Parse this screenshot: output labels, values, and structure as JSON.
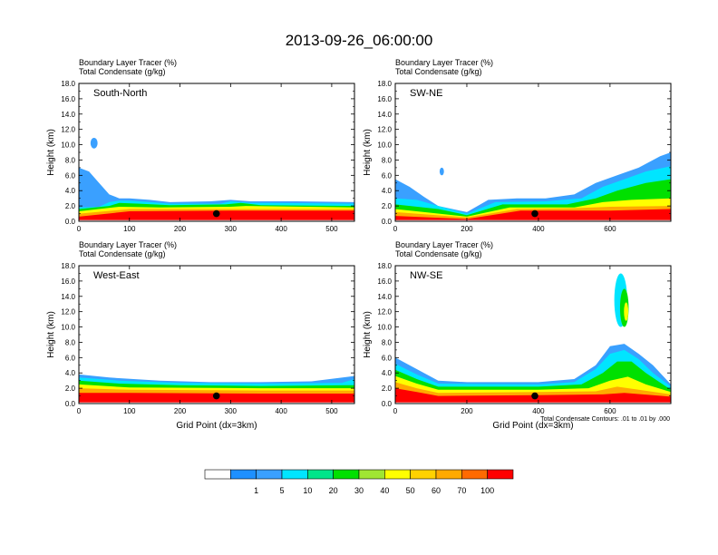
{
  "title": "2013-09-26_06:00:00",
  "colorbar": {
    "colors": [
      "#ffffff",
      "#1e90ff",
      "#3aa0ff",
      "#00e5ff",
      "#00e58a",
      "#00e000",
      "#a0e632",
      "#ffff00",
      "#ffd200",
      "#ffaa00",
      "#ff6a00",
      "#ff0000"
    ],
    "labels": [
      "1",
      "5",
      "10",
      "20",
      "30",
      "40",
      "50",
      "60",
      "70",
      "100"
    ]
  },
  "chart_data": [
    {
      "type": "heatmap",
      "name": "south-north",
      "panel_label": "South-North",
      "header_line1": "Boundary Layer Tracer   (%)",
      "header_line2": "Total Condensate   (g/kg)",
      "xlim": [
        0,
        545
      ],
      "ylim": [
        0,
        18
      ],
      "xticks": [
        0,
        100,
        200,
        300,
        400,
        500
      ],
      "yticks": [
        "0.0",
        "2.0",
        "4.0",
        "6.0",
        "8.0",
        "10.0",
        "12.0",
        "14.0",
        "16.0",
        "18.0"
      ],
      "ylabel": "Height (km)",
      "xlabel": "",
      "marker_x": 272,
      "marker_height_km": 1.0,
      "note": "",
      "layers": [
        {
          "color": "#3aa0ff",
          "top_km": [
            [
              0,
              7.0
            ],
            [
              20,
              6.5
            ],
            [
              40,
              5.0
            ],
            [
              60,
              3.5
            ],
            [
              80,
              3.0
            ],
            [
              100,
              3.0
            ],
            [
              140,
              2.8
            ],
            [
              180,
              2.5
            ],
            [
              260,
              2.6
            ],
            [
              300,
              2.8
            ],
            [
              340,
              2.6
            ],
            [
              380,
              2.6
            ],
            [
              430,
              2.6
            ],
            [
              545,
              2.5
            ]
          ]
        },
        {
          "color": "#00e5ff",
          "top_km": [
            [
              0,
              1.8
            ],
            [
              40,
              1.9
            ],
            [
              60,
              2.5
            ],
            [
              80,
              2.7
            ],
            [
              100,
              2.7
            ],
            [
              140,
              2.5
            ],
            [
              180,
              2.3
            ],
            [
              280,
              2.3
            ],
            [
              300,
              2.6
            ],
            [
              340,
              2.4
            ],
            [
              380,
              2.4
            ],
            [
              545,
              2.3
            ]
          ]
        },
        {
          "color": "#00e000",
          "top_km": [
            [
              0,
              1.6
            ],
            [
              60,
              2.0
            ],
            [
              80,
              2.4
            ],
            [
              120,
              2.3
            ],
            [
              180,
              2.1
            ],
            [
              290,
              2.2
            ],
            [
              320,
              2.4
            ],
            [
              360,
              2.1
            ],
            [
              545,
              2.0
            ]
          ]
        },
        {
          "color": "#ffff00",
          "top_km": [
            [
              0,
              1.3
            ],
            [
              80,
              1.9
            ],
            [
              160,
              1.8
            ],
            [
              300,
              1.9
            ],
            [
              330,
              2.0
            ],
            [
              545,
              1.8
            ]
          ]
        },
        {
          "color": "#ffaa00",
          "top_km": [
            [
              0,
              1.0
            ],
            [
              100,
              1.6
            ],
            [
              300,
              1.6
            ],
            [
              545,
              1.6
            ]
          ]
        },
        {
          "color": "#ff0000",
          "top_km": [
            [
              0,
              0.6
            ],
            [
              100,
              1.3
            ],
            [
              300,
              1.4
            ],
            [
              545,
              1.4
            ]
          ]
        }
      ],
      "blobs": [
        {
          "color": "#3aa0ff",
          "x": 30,
          "h_km": 10.2,
          "rx": 7,
          "ry_km": 0.7
        }
      ]
    },
    {
      "type": "heatmap",
      "name": "sw-ne",
      "panel_label": "SW-NE",
      "header_line1": "Boundary Layer Tracer   (%)",
      "header_line2": "Total Condensate   (g/kg)",
      "xlim": [
        0,
        770
      ],
      "ylim": [
        0,
        18
      ],
      "xticks": [
        0,
        200,
        400,
        600
      ],
      "yticks": [
        "0.0",
        "2.0",
        "4.0",
        "6.0",
        "8.0",
        "10.0",
        "12.0",
        "14.0",
        "16.0",
        "18.0"
      ],
      "ylabel": "Height (km)",
      "xlabel": "",
      "marker_x": 390,
      "marker_height_km": 1.0,
      "note": "",
      "layers": [
        {
          "color": "#3aa0ff",
          "top_km": [
            [
              0,
              5.5
            ],
            [
              40,
              4.5
            ],
            [
              80,
              3.2
            ],
            [
              120,
              2.0
            ],
            [
              200,
              1.2
            ],
            [
              260,
              2.8
            ],
            [
              340,
              3.0
            ],
            [
              420,
              3.0
            ],
            [
              500,
              3.5
            ],
            [
              560,
              5.0
            ],
            [
              620,
              6.0
            ],
            [
              680,
              7.0
            ],
            [
              740,
              8.5
            ],
            [
              770,
              9.0
            ]
          ]
        },
        {
          "color": "#00e5ff",
          "top_km": [
            [
              0,
              3.0
            ],
            [
              60,
              2.8
            ],
            [
              120,
              2.0
            ],
            [
              200,
              1.0
            ],
            [
              280,
              2.5
            ],
            [
              420,
              2.6
            ],
            [
              520,
              3.0
            ],
            [
              580,
              4.5
            ],
            [
              640,
              5.5
            ],
            [
              700,
              6.5
            ],
            [
              770,
              7.2
            ]
          ]
        },
        {
          "color": "#00e000",
          "top_km": [
            [
              0,
              2.2
            ],
            [
              120,
              1.6
            ],
            [
              200,
              0.8
            ],
            [
              300,
              2.2
            ],
            [
              480,
              2.2
            ],
            [
              560,
              3.0
            ],
            [
              620,
              4.0
            ],
            [
              700,
              5.0
            ],
            [
              770,
              5.5
            ]
          ]
        },
        {
          "color": "#ffff00",
          "top_km": [
            [
              0,
              1.6
            ],
            [
              200,
              0.6
            ],
            [
              320,
              1.8
            ],
            [
              500,
              1.8
            ],
            [
              580,
              2.5
            ],
            [
              660,
              2.8
            ],
            [
              770,
              3.0
            ]
          ]
        },
        {
          "color": "#ffaa00",
          "top_km": [
            [
              0,
              1.2
            ],
            [
              200,
              0.5
            ],
            [
              340,
              1.6
            ],
            [
              500,
              1.7
            ],
            [
              600,
              1.9
            ],
            [
              770,
              2.0
            ]
          ]
        },
        {
          "color": "#ff0000",
          "top_km": [
            [
              0,
              0.7
            ],
            [
              200,
              0.3
            ],
            [
              350,
              1.4
            ],
            [
              500,
              1.4
            ],
            [
              600,
              1.4
            ],
            [
              770,
              1.6
            ]
          ]
        }
      ],
      "blobs": [
        {
          "color": "#3aa0ff",
          "x": 130,
          "h_km": 6.5,
          "rx": 6,
          "ry_km": 0.5
        }
      ]
    },
    {
      "type": "heatmap",
      "name": "west-east",
      "panel_label": "West-East",
      "header_line1": "Boundary Layer Tracer   (%)",
      "header_line2": "Total Condensate   (g/kg)",
      "xlim": [
        0,
        545
      ],
      "ylim": [
        0,
        18
      ],
      "xticks": [
        0,
        100,
        200,
        300,
        400,
        500
      ],
      "yticks": [
        "0.0",
        "2.0",
        "4.0",
        "6.0",
        "8.0",
        "10.0",
        "12.0",
        "14.0",
        "16.0",
        "18.0"
      ],
      "ylabel": "Height (km)",
      "xlabel": "Grid Point (dx=3km)",
      "marker_x": 272,
      "marker_height_km": 1.0,
      "note": "",
      "layers": [
        {
          "color": "#3aa0ff",
          "top_km": [
            [
              0,
              3.8
            ],
            [
              60,
              3.4
            ],
            [
              160,
              3.0
            ],
            [
              260,
              2.8
            ],
            [
              360,
              2.8
            ],
            [
              460,
              2.9
            ],
            [
              545,
              3.6
            ]
          ]
        },
        {
          "color": "#00e5ff",
          "top_km": [
            [
              0,
              3.4
            ],
            [
              80,
              3.0
            ],
            [
              200,
              2.7
            ],
            [
              360,
              2.6
            ],
            [
              520,
              2.7
            ],
            [
              545,
              3.2
            ]
          ]
        },
        {
          "color": "#00e000",
          "top_km": [
            [
              0,
              3.0
            ],
            [
              80,
              2.6
            ],
            [
              200,
              2.4
            ],
            [
              360,
              2.3
            ],
            [
              545,
              2.4
            ]
          ]
        },
        {
          "color": "#ffff00",
          "top_km": [
            [
              0,
              2.5
            ],
            [
              100,
              2.1
            ],
            [
              360,
              2.0
            ],
            [
              545,
              2.0
            ]
          ]
        },
        {
          "color": "#ffaa00",
          "top_km": [
            [
              0,
              2.0
            ],
            [
              100,
              1.8
            ],
            [
              360,
              1.7
            ],
            [
              545,
              1.7
            ]
          ]
        },
        {
          "color": "#ff0000",
          "top_km": [
            [
              0,
              1.4
            ],
            [
              100,
              1.4
            ],
            [
              360,
              1.3
            ],
            [
              545,
              1.3
            ]
          ]
        }
      ],
      "blobs": []
    },
    {
      "type": "heatmap",
      "name": "nw-se",
      "panel_label": "NW-SE",
      "header_line1": "Boundary Layer Tracer   (%)",
      "header_line2": "Total Condensate   (g/kg)",
      "xlim": [
        0,
        770
      ],
      "ylim": [
        0,
        18
      ],
      "xticks": [
        0,
        200,
        400,
        600
      ],
      "yticks": [
        "0.0",
        "2.0",
        "4.0",
        "6.0",
        "8.0",
        "10.0",
        "12.0",
        "14.0",
        "16.0",
        "18.0"
      ],
      "ylabel": "Height (km)",
      "xlabel": "Grid Point (dx=3km)",
      "marker_x": 390,
      "marker_height_km": 1.0,
      "note": "Total Condensate Contours: .01 to .01 by .000",
      "layers": [
        {
          "color": "#3aa0ff",
          "top_km": [
            [
              0,
              6.0
            ],
            [
              60,
              4.5
            ],
            [
              120,
              3.0
            ],
            [
              200,
              2.8
            ],
            [
              400,
              2.8
            ],
            [
              500,
              3.2
            ],
            [
              560,
              5.0
            ],
            [
              600,
              7.5
            ],
            [
              640,
              7.8
            ],
            [
              680,
              6.5
            ],
            [
              720,
              5.0
            ],
            [
              770,
              2.5
            ]
          ]
        },
        {
          "color": "#00e5ff",
          "top_km": [
            [
              0,
              5.2
            ],
            [
              60,
              3.8
            ],
            [
              120,
              2.6
            ],
            [
              400,
              2.5
            ],
            [
              500,
              2.8
            ],
            [
              560,
              4.5
            ],
            [
              600,
              6.5
            ],
            [
              640,
              7.0
            ],
            [
              680,
              5.8
            ],
            [
              720,
              4.0
            ],
            [
              770,
              2.2
            ]
          ]
        },
        {
          "color": "#00e000",
          "top_km": [
            [
              0,
              4.4
            ],
            [
              60,
              3.2
            ],
            [
              120,
              2.2
            ],
            [
              400,
              2.2
            ],
            [
              520,
              2.5
            ],
            [
              580,
              4.0
            ],
            [
              620,
              5.5
            ],
            [
              660,
              5.5
            ],
            [
              700,
              4.0
            ],
            [
              770,
              1.8
            ]
          ]
        },
        {
          "color": "#ffff00",
          "top_km": [
            [
              0,
              3.6
            ],
            [
              60,
              2.6
            ],
            [
              120,
              1.8
            ],
            [
              400,
              1.8
            ],
            [
              540,
              2.0
            ],
            [
              600,
              3.0
            ],
            [
              650,
              3.5
            ],
            [
              700,
              2.5
            ],
            [
              770,
              1.5
            ]
          ]
        },
        {
          "color": "#ffaa00",
          "top_km": [
            [
              0,
              2.8
            ],
            [
              60,
              2.0
            ],
            [
              120,
              1.4
            ],
            [
              400,
              1.5
            ],
            [
              560,
              1.6
            ],
            [
              620,
              2.2
            ],
            [
              680,
              1.8
            ],
            [
              770,
              1.2
            ]
          ]
        },
        {
          "color": "#ff0000",
          "top_km": [
            [
              0,
              2.0
            ],
            [
              60,
              1.5
            ],
            [
              120,
              1.0
            ],
            [
              400,
              1.1
            ],
            [
              580,
              1.2
            ],
            [
              640,
              1.4
            ],
            [
              770,
              0.9
            ]
          ]
        }
      ],
      "blobs": [
        {
          "color": "#00e5ff",
          "x": 630,
          "h_km": 13.5,
          "rx": 18,
          "ry_km": 3.5
        },
        {
          "color": "#00e000",
          "x": 640,
          "h_km": 12.5,
          "rx": 12,
          "ry_km": 2.5
        },
        {
          "color": "#ffff00",
          "x": 645,
          "h_km": 12.0,
          "rx": 6,
          "ry_km": 1.2
        }
      ]
    }
  ]
}
